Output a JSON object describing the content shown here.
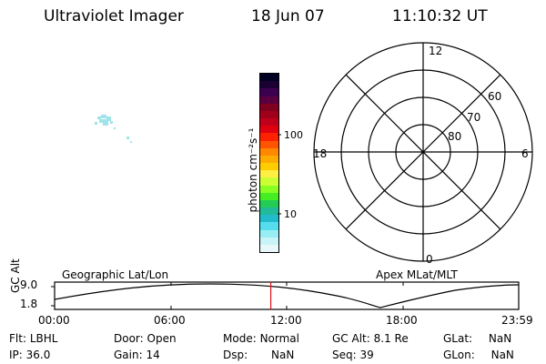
{
  "header": {
    "instrument": "Ultraviolet Imager",
    "date": "18 Jun 07",
    "time": "11:10:32 UT"
  },
  "colorbar": {
    "unit_label": "photon cm⁻²s⁻¹",
    "ticks": [
      "100",
      "10"
    ],
    "colors": [
      "#000022",
      "#1a0033",
      "#3d0050",
      "#5a0040",
      "#800020",
      "#a0001a",
      "#c0001a",
      "#e00010",
      "#ff2200",
      "#ff5500",
      "#ff8800",
      "#ffaa00",
      "#ffcc00",
      "#ffee44",
      "#ccff33",
      "#88ff22",
      "#44ee22",
      "#22cc55",
      "#22bb99",
      "#22bbcc",
      "#55ddee",
      "#99eef6",
      "#c8f4f8",
      "#e8f8fa"
    ]
  },
  "polar": {
    "mlt_labels": {
      "top": "12",
      "left": "18",
      "right": "6",
      "bottom": "0"
    },
    "lat_labels": [
      "60",
      "70",
      "80"
    ]
  },
  "timeline": {
    "left_title": "Geographic Lat/Lon",
    "right_title": "Apex MLat/MLT",
    "y_axis_label": "GC Alt",
    "y_ticks": [
      "9.0",
      "1.8"
    ],
    "x_ticks": [
      "00:00",
      "06:00",
      "12:00",
      "18:00",
      "23:59"
    ],
    "current_time_hours": 11.18
  },
  "info": {
    "flt_label": "Flt:",
    "flt_value": "LBHL",
    "ip_label": "IP:",
    "ip_value": "36.0",
    "door_label": "Door:",
    "door_value": "Open",
    "gain_label": "Gain:",
    "gain_value": "14",
    "mode_label": "Mode:",
    "mode_value": "Normal",
    "dsp_label": "Dsp:",
    "dsp_value": "NaN",
    "gcalt_label": "GC Alt:",
    "gcalt_value": "8.1 Re",
    "seq_label": "Seq:",
    "seq_value": "39",
    "glat_label": "GLat:",
    "glat_value": "NaN",
    "glon_label": "GLon:",
    "glon_value": "NaN"
  },
  "colors": {
    "foreground": "#000000",
    "time_marker": "#e01010",
    "emission_patch": "#9fe4ea"
  }
}
